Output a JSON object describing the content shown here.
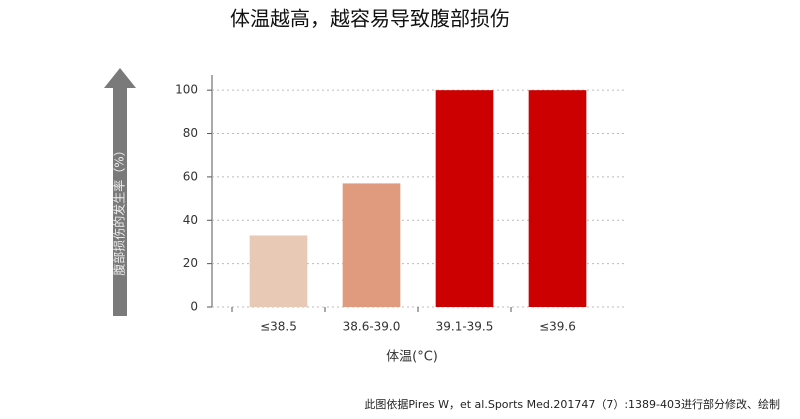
{
  "chart_data": {
    "type": "bar",
    "title": "体温越高，越容易导致腹部损伤",
    "y_label": "腹部损伤的发生率（%）",
    "x_label": "体温(°C)",
    "categories": [
      "≤38.5",
      "38.6-39.0",
      "39.1-39.5",
      "≤39.6"
    ],
    "values": [
      33,
      57,
      100,
      100
    ],
    "colors": [
      "#e8c9b6",
      "#e09a7e",
      "#cc0000",
      "#cc0000"
    ],
    "ylim": [
      0,
      107
    ],
    "yticks": [
      0,
      20,
      40,
      60,
      80,
      100
    ],
    "grid": true,
    "footnote": "此图依据Pires W，et al.Sports Med.201747（7）:1389-403进行部分修改、绘制"
  }
}
